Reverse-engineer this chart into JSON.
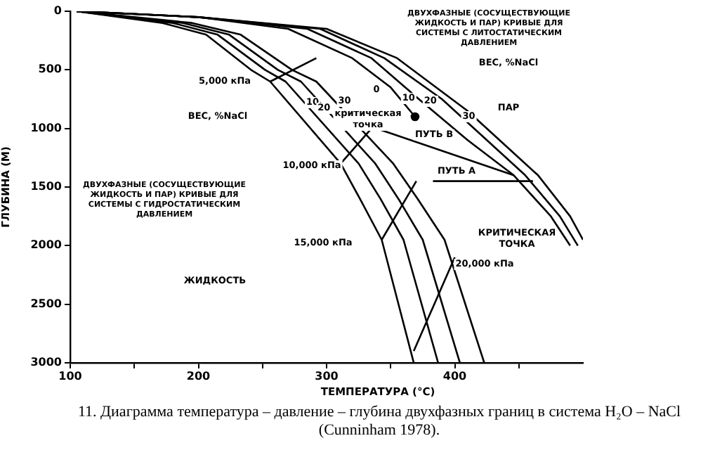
{
  "chart_data": {
    "type": "line",
    "xlabel": "ТЕМПЕРАТУРА (°C)",
    "ylabel": "ГЛУБИНА (М)",
    "xlim": [
      100,
      500
    ],
    "xticks": [
      100,
      {
        "value": 150,
        "label": null
      },
      200,
      {
        "value": 250,
        "label": null
      },
      300,
      {
        "value": 350,
        "label": null
      },
      400,
      {
        "value": 450,
        "label": null
      }
    ],
    "ylim": [
      3000,
      0
    ],
    "yticks": [
      0,
      500,
      1000,
      1500,
      2000,
      2500,
      3000
    ],
    "grid": false,
    "legend": false,
    "marker": "none",
    "series": [
      {
        "type": "line",
        "color": "#000000",
        "x": [
          105,
          172,
          206,
          241,
          256,
          311,
          326,
          343,
          368
        ],
        "values": [
          0,
          100,
          200,
          500,
          600,
          1300,
          1600,
          1950,
          3000
        ]
      },
      {
        "type": "line",
        "color": "#000000",
        "x": [
          105,
          180,
          215,
          252,
          268,
          325,
          342,
          360,
          387
        ],
        "values": [
          0,
          100,
          200,
          500,
          600,
          1300,
          1600,
          1950,
          3000
        ]
      },
      {
        "type": "line",
        "color": "#000000",
        "x": [
          105,
          188,
          224,
          262,
          280,
          338,
          356,
          375,
          404
        ],
        "values": [
          0,
          100,
          200,
          500,
          600,
          1300,
          1600,
          1950,
          3000
        ]
      },
      {
        "type": "line",
        "color": "#000000",
        "x": [
          105,
          195,
          233,
          273,
          292,
          352,
          371,
          392,
          423
        ],
        "values": [
          0,
          100,
          200,
          500,
          600,
          1300,
          1600,
          1950,
          3000
        ]
      },
      {
        "type": "line",
        "color": "#000000",
        "x": [
          105,
          200,
          270,
          320,
          350,
          369
        ],
        "values": [
          0,
          50,
          150,
          400,
          650,
          900
        ]
      },
      {
        "type": "line",
        "color": "#000000",
        "x": [
          105,
          200,
          285,
          335,
          372,
          410,
          446,
          475,
          490
        ],
        "values": [
          0,
          50,
          150,
          400,
          750,
          1100,
          1400,
          1750,
          2000
        ]
      },
      {
        "type": "line",
        "color": "#000000",
        "x": [
          105,
          200,
          295,
          345,
          390,
          425,
          455,
          482,
          496
        ],
        "values": [
          0,
          50,
          150,
          400,
          750,
          1100,
          1400,
          1750,
          2000
        ]
      },
      {
        "type": "line",
        "color": "#000000",
        "x": [
          105,
          200,
          300,
          355,
          410,
          440,
          465,
          490,
          500
        ],
        "values": [
          0,
          50,
          150,
          400,
          850,
          1150,
          1400,
          1750,
          1950
        ]
      },
      {
        "type": "line",
        "color": "#000000",
        "x": [
          256,
          292
        ],
        "values": [
          600,
          400
        ]
      },
      {
        "type": "line",
        "color": "#000000",
        "x": [
          311,
          335
        ],
        "values": [
          1300,
          1000
        ]
      },
      {
        "type": "line",
        "color": "#000000",
        "x": [
          343,
          370
        ],
        "values": [
          1950,
          1450
        ]
      },
      {
        "type": "line",
        "color": "#000000",
        "x": [
          368,
          400
        ],
        "values": [
          2900,
          2100
        ]
      },
      {
        "type": "line",
        "color": "#000000",
        "x": [
          461,
          383
        ],
        "values": [
          1450,
          1450
        ]
      },
      {
        "type": "line",
        "color": "#000000",
        "x": [
          446,
          339
        ],
        "values": [
          1400,
          1000
        ]
      },
      {
        "type": "scatter",
        "color": "#000000",
        "marker": "circle",
        "x": [
          369
        ],
        "values": [
          900
        ]
      }
    ],
    "annotations": [
      "ДВУХФАЗНЫЕ (СОСУЩЕСТВУЮЩИЕ ЖИДКОСТЬ И ПАР) КРИВЫЕ ДЛЯ СИСТЕМЫ С ЛИТОСТАТИЧЕСКИМ ДАВЛЕНИЕМ",
      "ДВУХФАЗНЫЕ (СОСУЩЕСТВУЮЩИЕ ЖИДКОСТЬ И ПАР) КРИВЫЕ ДЛЯ СИСТЕМЫ С ГИДРОСТАТИЧЕСКИМ ДАВЛЕНИЕМ",
      "5,000 кПа",
      "10,000 кПа",
      "15,000 кПа",
      "20,000 кПа",
      "ВЕС, %NaCl",
      "ВЕС, %NaCl",
      "0",
      "ПАР",
      "ЖИДКОСТЬ",
      "критическая точка",
      "КРИТИЧЕСКАЯ ТОЧКА",
      "ПУТЬ В",
      "ПУТЬ А",
      {
        "text": "10",
        "x": 289,
        "y": 780
      },
      {
        "text": "20",
        "x": 298,
        "y": 828
      },
      {
        "text": "30",
        "x": 314,
        "y": 768
      },
      {
        "text": "10",
        "x": 364,
        "y": 744
      },
      {
        "text": "20",
        "x": 381,
        "y": 768
      },
      {
        "text": "30",
        "x": 411,
        "y": 900
      },
      "11. Диаграмма температура – давление – глубина двухфазных границ в система H₂O – NaCl (Cunninham 1978)."
    ]
  }
}
